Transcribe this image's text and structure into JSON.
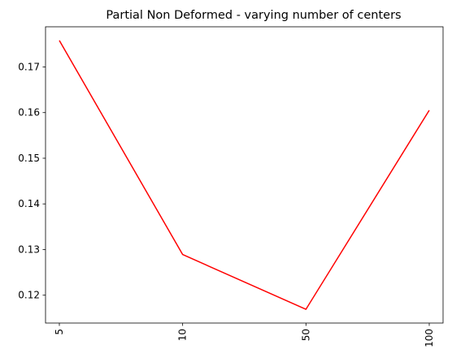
{
  "chart_data": {
    "type": "line",
    "title": "Partial Non Deformed - varying number of centers",
    "xlabel": "",
    "ylabel": "",
    "categories": [
      "5",
      "10",
      "50",
      "100"
    ],
    "series": [
      {
        "values": [
          0.1758,
          0.1289,
          0.1169,
          0.1605
        ],
        "color": "#ff0000"
      }
    ],
    "ylim": [
      0.1139,
      0.1788
    ],
    "yticks": [
      0.12,
      0.13,
      0.14,
      0.15,
      0.16,
      0.17
    ],
    "ytick_labels": [
      "0.12",
      "0.13",
      "0.14",
      "0.15",
      "0.16",
      "0.17"
    ],
    "grid": false,
    "legend": "none"
  }
}
